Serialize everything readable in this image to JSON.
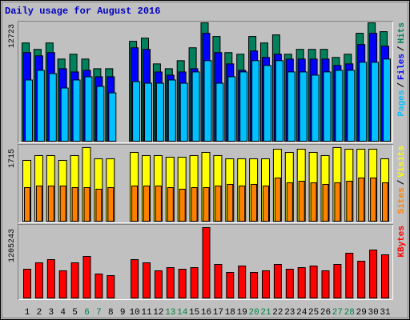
{
  "chart_data": {
    "type": "bar",
    "title": "Daily usage for August 2016",
    "categories": [
      "1",
      "2",
      "3",
      "4",
      "5",
      "6",
      "7",
      "8",
      "9",
      "10",
      "11",
      "12",
      "13",
      "14",
      "15",
      "16",
      "17",
      "18",
      "19",
      "20",
      "21",
      "22",
      "23",
      "24",
      "25",
      "26",
      "27",
      "28",
      "29",
      "30",
      "31"
    ],
    "label_colors": [
      "#000000",
      "#000000",
      "#000000",
      "#000000",
      "#000000",
      "#008040",
      "#008040",
      "#000000",
      "#000000",
      "#000000",
      "#000000",
      "#000000",
      "#008040",
      "#008040",
      "#000000",
      "#000000",
      "#000000",
      "#000000",
      "#000000",
      "#008040",
      "#008040",
      "#000000",
      "#000000",
      "#000000",
      "#000000",
      "#000000",
      "#008040",
      "#008040",
      "#000000",
      "#000000",
      "#000000"
    ],
    "separator": "/",
    "panels": [
      {
        "ylim": [
          0,
          12723
        ],
        "yticks": [
          12723
        ],
        "series": [
          {
            "name": "Hits",
            "color": "#00805c",
            "values": [
              10559,
              9867,
              10559,
              8828,
              9347,
              8828,
              7790,
              7790,
              0,
              10732,
              11078,
              8309,
              7790,
              8655,
              10040,
              12723,
              11252,
              9521,
              9347,
              11252,
              10559,
              11425,
              9347,
              9867,
              9867,
              9867,
              9001,
              9347,
              11598,
              12723,
              11771
            ]
          },
          {
            "name": "Files",
            "color": "#0000ff",
            "values": [
              9521,
              9175,
              9521,
              7790,
              7443,
              7617,
              6924,
              6924,
              0,
              10040,
              9867,
              7443,
              7097,
              7443,
              7790,
              11598,
              9521,
              8309,
              7617,
              9694,
              9001,
              9347,
              8828,
              8828,
              8828,
              8828,
              8136,
              8309,
              10386,
              11598,
              10213
            ]
          },
          {
            "name": "Pages",
            "color": "#00c0ff",
            "values": [
              6578,
              7616,
              7270,
              5712,
              6578,
              6924,
              5885,
              5193,
              0,
              6405,
              6232,
              6232,
              6578,
              6232,
              7443,
              8655,
              6232,
              6924,
              7443,
              8655,
              8136,
              8655,
              7443,
              7443,
              7097,
              7443,
              7616,
              7616,
              8482,
              8482,
              8828
            ]
          }
        ]
      },
      {
        "ylim": [
          0,
          1715
        ],
        "yticks": [
          1715
        ],
        "series": [
          {
            "name": "Visits",
            "color": "#ffff00",
            "values": [
              1417,
              1529,
              1529,
              1417,
              1529,
              1715,
              1454,
              1454,
              0,
              1603,
              1529,
              1529,
              1491,
              1491,
              1529,
              1603,
              1529,
              1454,
              1454,
              1454,
              1454,
              1678,
              1603,
              1678,
              1603,
              1529,
              1715,
              1678,
              1678,
              1678,
              1454
            ]
          },
          {
            "name": "Sites",
            "color": "#ff8000",
            "values": [
              783,
              820,
              820,
              820,
              783,
              783,
              746,
              783,
              0,
              820,
              820,
              820,
              783,
              746,
              783,
              783,
              820,
              858,
              820,
              858,
              820,
              1007,
              895,
              932,
              895,
              858,
              895,
              932,
              1007,
              1007,
              895
            ]
          }
        ]
      },
      {
        "ylim": [
          0,
          1205243
        ],
        "yticks": [
          1205243
        ],
        "series": [
          {
            "name": "KBytes",
            "color": "#ff0000",
            "values": [
              493056,
              602624,
              657408,
              465664,
              602624,
              712192,
              410880,
              383488,
              0,
              657408,
              602624,
              465664,
              520448,
              493056,
              520448,
              1205243,
              575232,
              438272,
              547840,
              438272,
              465664,
              575232,
              493056,
              520448,
              547840,
              465664,
              575232,
              766976,
              630016,
              821760,
              739584
            ]
          }
        ]
      }
    ]
  }
}
